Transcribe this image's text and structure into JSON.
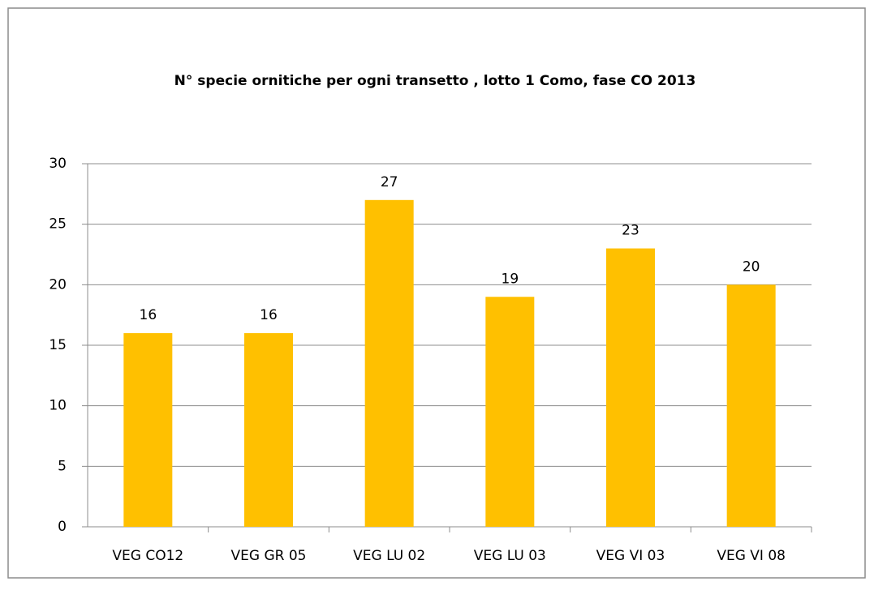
{
  "chart_data": {
    "type": "bar",
    "title": "N° specie ornitiche per ogni transetto , lotto 1 Como,  fase CO 2013",
    "categories": [
      "VEG CO12",
      "VEG GR 05",
      "VEG LU 02",
      "VEG LU 03",
      "VEG VI 03",
      "VEG VI 08"
    ],
    "values": [
      16,
      16,
      27,
      19,
      23,
      20
    ],
    "color": "#ffc000",
    "ylim": [
      0,
      30
    ],
    "yticks": [
      0,
      5,
      10,
      15,
      20,
      25,
      30
    ],
    "grid": true
  }
}
